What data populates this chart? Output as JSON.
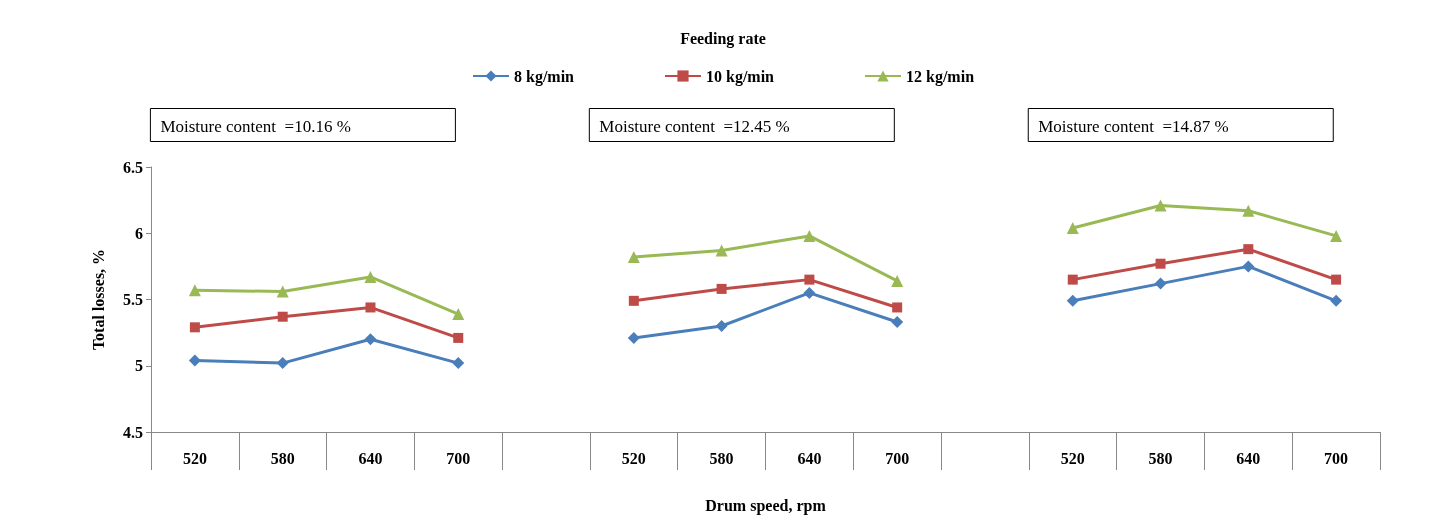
{
  "chart_data": {
    "type": "line",
    "xlabel": "Drum speed, rpm",
    "ylabel": "Total losses, %",
    "legend_title": "Feeding rate",
    "legend": "top",
    "categories": [
      "520",
      "580",
      "640",
      "700",
      null,
      "520",
      "580",
      "640",
      "700",
      null,
      "520",
      "580",
      "640",
      "700"
    ],
    "ylim": [
      4.5,
      6.5
    ],
    "yticks": [
      4.5,
      5,
      5.5,
      6,
      6.5
    ],
    "grid": false,
    "line_style": "solid",
    "annotations": [
      "Moisture content  =10.16 %",
      "Moisture content  =12.45 %",
      "Moisture content  =14.87 %"
    ],
    "series": [
      {
        "name": "8 kg/min",
        "color": "#4a7ebb",
        "marker": "diamond",
        "values": [
          5.04,
          5.02,
          5.2,
          5.02,
          null,
          5.21,
          5.3,
          5.55,
          5.33,
          null,
          5.49,
          5.62,
          5.75,
          5.49
        ]
      },
      {
        "name": "10 kg/min",
        "color": "#be4b48",
        "marker": "square",
        "values": [
          5.29,
          5.37,
          5.44,
          5.21,
          null,
          5.49,
          5.58,
          5.65,
          5.44,
          null,
          5.65,
          5.77,
          5.88,
          5.65
        ]
      },
      {
        "name": "12 kg/min",
        "color": "#98b954",
        "marker": "triangle",
        "values": [
          5.57,
          5.56,
          5.67,
          5.39,
          null,
          5.82,
          5.87,
          5.98,
          5.64,
          null,
          6.04,
          6.21,
          6.17,
          5.98
        ]
      }
    ]
  }
}
